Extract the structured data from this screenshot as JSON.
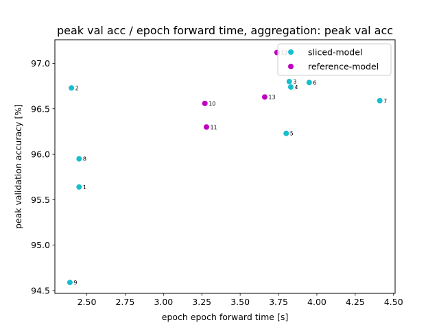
{
  "chart_data": {
    "type": "scatter",
    "title": "peak val acc / epoch forward time, aggregation: peak val acc",
    "xlabel": "epoch epoch forward time [s]",
    "ylabel": "peak validation accuracy [%]",
    "xlim": [
      2.292,
      4.51
    ],
    "ylim": [
      94.47,
      97.26
    ],
    "xticks": [
      2.5,
      2.75,
      3.0,
      3.25,
      3.5,
      3.75,
      4.0,
      4.25,
      4.5
    ],
    "xtick_labels": [
      "2.50",
      "2.75",
      "3.00",
      "3.25",
      "3.50",
      "3.75",
      "4.00",
      "4.25",
      "4.50"
    ],
    "yticks": [
      94.5,
      95.0,
      95.5,
      96.0,
      96.5,
      97.0
    ],
    "ytick_labels": [
      "94.5",
      "95.0",
      "95.5",
      "96.0",
      "96.5",
      "97.0"
    ],
    "grid": false,
    "legend_position": "top-right",
    "series": [
      {
        "name": "sliced-model",
        "color": "#17becf",
        "points": [
          {
            "label": "1",
            "x": 2.45,
            "y": 95.64
          },
          {
            "label": "2",
            "x": 2.4,
            "y": 96.73
          },
          {
            "label": "3",
            "x": 3.82,
            "y": 96.8
          },
          {
            "label": "4",
            "x": 3.83,
            "y": 96.74
          },
          {
            "label": "5",
            "x": 3.8,
            "y": 96.23
          },
          {
            "label": "6",
            "x": 3.95,
            "y": 96.79
          },
          {
            "label": "7",
            "x": 4.41,
            "y": 96.59
          },
          {
            "label": "8",
            "x": 2.45,
            "y": 95.95
          },
          {
            "label": "9",
            "x": 2.39,
            "y": 94.59
          }
        ]
      },
      {
        "name": "reference-model",
        "color": "#bf00bf",
        "points": [
          {
            "label": "10",
            "x": 3.27,
            "y": 96.56
          },
          {
            "label": "11",
            "x": 3.28,
            "y": 96.3
          },
          {
            "label": "12",
            "x": 3.74,
            "y": 97.12
          },
          {
            "label": "13",
            "x": 3.66,
            "y": 96.63
          }
        ]
      }
    ]
  }
}
